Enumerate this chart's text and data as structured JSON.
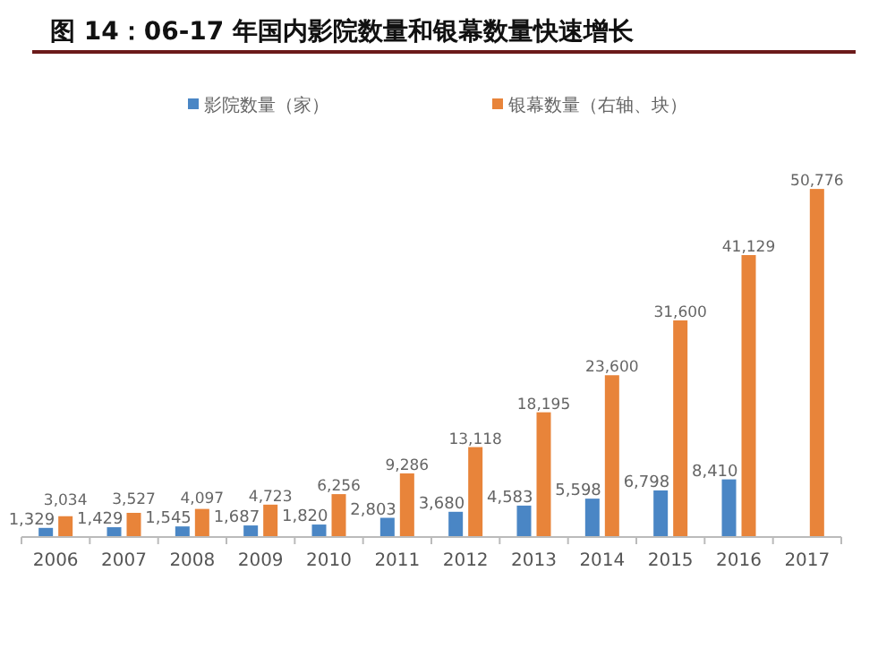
{
  "chart_data": {
    "type": "bar",
    "title": "图 14：06-17 年国内影院数量和银幕数量快速增长",
    "categories": [
      "2006",
      "2007",
      "2008",
      "2009",
      "2010",
      "2011",
      "2012",
      "2013",
      "2014",
      "2015",
      "2016",
      "2017"
    ],
    "series": [
      {
        "name": "影院数量（家）",
        "color": "#4a86c5",
        "values": [
          1329,
          1429,
          1545,
          1687,
          1820,
          2803,
          3680,
          4583,
          5598,
          6798,
          8410,
          null
        ],
        "value_labels": [
          "1,329",
          "1,429",
          "1,545",
          "1,687",
          "1,820",
          "2,803",
          "3,680",
          "4,583",
          "5,598",
          "6,798",
          "8,410",
          null
        ]
      },
      {
        "name": "银幕数量（右轴、块）",
        "color": "#e8843a",
        "values": [
          3034,
          3527,
          4097,
          4723,
          6256,
          9286,
          13118,
          18195,
          23600,
          31600,
          41129,
          50776
        ],
        "value_labels": [
          "3,034",
          "3,527",
          "4,097",
          "4,723",
          "6,256",
          "9,286",
          "13,118",
          "18,195",
          "23,600",
          "31,600",
          "41,129",
          "50,776"
        ]
      }
    ],
    "tick_labels": "x",
    "legend": "top"
  }
}
